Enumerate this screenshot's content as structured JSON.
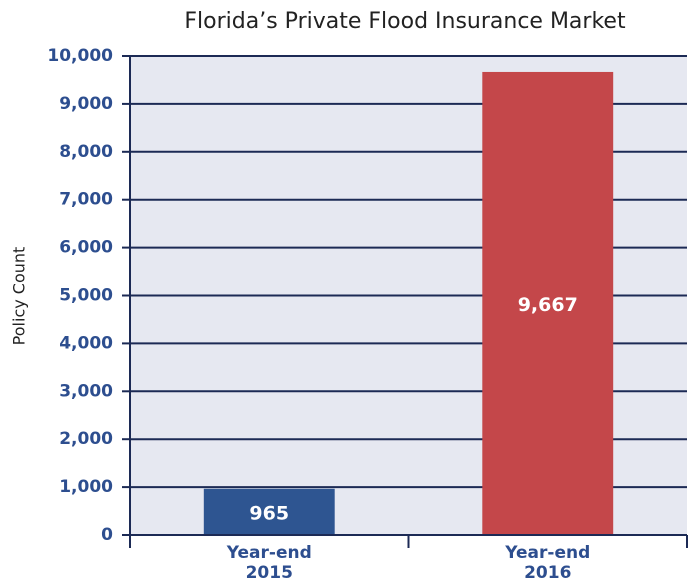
{
  "chart_data": {
    "type": "bar",
    "title": "Florida’s Private Flood Insurance Market",
    "ylabel": "Policy Count",
    "categories": [
      "Year-end 2015",
      "Year-end 2016"
    ],
    "values": [
      965,
      9667
    ],
    "value_labels": [
      "965",
      "9,667"
    ],
    "colors": [
      "#2e5591",
      "#c4474a"
    ],
    "ylim": [
      0,
      10000
    ],
    "yticks": [
      0,
      {
        "value": 1000,
        "label": "1,000"
      },
      {
        "value": 2000,
        "label": "2,000"
      },
      {
        "value": 3000,
        "label": "3,000"
      },
      {
        "value": 4000,
        "label": "4,000"
      },
      {
        "value": 5000,
        "label": "5,000"
      },
      {
        "value": 6000,
        "label": "6,000"
      },
      {
        "value": 7000,
        "label": "7,000"
      },
      {
        "value": 8000,
        "label": "8,000"
      },
      {
        "value": 9000,
        "label": "9,000"
      },
      {
        "value": 10000,
        "label": "10,000"
      }
    ],
    "grid": true
  }
}
